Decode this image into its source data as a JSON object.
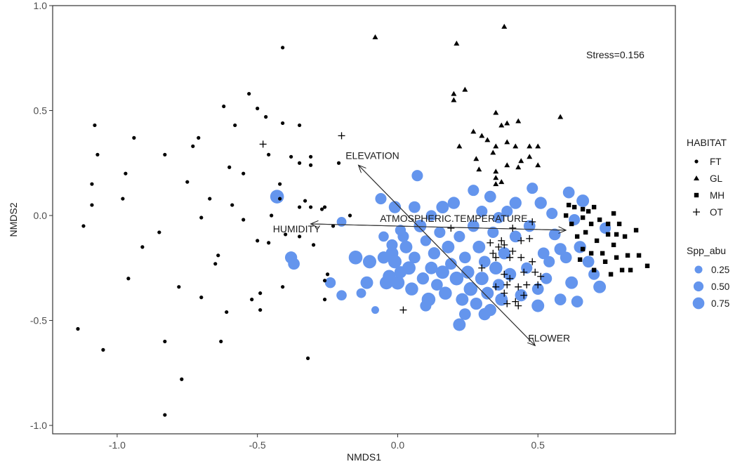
{
  "chart_data": {
    "type": "scatter",
    "xlabel": "NMDS1",
    "ylabel": "NMDS2",
    "xlim": [
      -1.23,
      0.99
    ],
    "ylim": [
      -1.04,
      1.0
    ],
    "x_ticks": [
      -1.0,
      -0.5,
      0.0,
      0.5
    ],
    "x_tick_labels": [
      "-1.0",
      "-0.5",
      "0.0",
      "0.5"
    ],
    "y_ticks": [
      -1.0,
      -0.5,
      0.0,
      0.5,
      1.0
    ],
    "y_tick_labels": [
      "-1.0",
      "-0.5",
      "0.0",
      "0.5",
      "1.0"
    ],
    "grid": false,
    "annotation": "Stress=0.156",
    "habitat_legend": {
      "title": "HABITAT",
      "position": "right",
      "items": [
        {
          "label": "FT",
          "shape": "circle"
        },
        {
          "label": "GL",
          "shape": "triangle"
        },
        {
          "label": "MH",
          "shape": "square"
        },
        {
          "label": "OT",
          "shape": "plus"
        }
      ]
    },
    "abundance_legend": {
      "title": "Spp_abu",
      "position": "right",
      "color": "#6495ED",
      "items": [
        {
          "label": "0.25",
          "value": 0.25
        },
        {
          "label": "0.50",
          "value": 0.5
        },
        {
          "label": "0.75",
          "value": 0.75
        }
      ]
    },
    "vectors": [
      {
        "label": "ELEVATION",
        "from": [
          0.49,
          -0.62
        ],
        "to": [
          -0.14,
          0.24
        ],
        "label_at": [
          -0.09,
          0.27
        ]
      },
      {
        "label": "FLOWER",
        "from": [
          -0.14,
          0.24
        ],
        "to": [
          0.49,
          -0.62
        ],
        "label_at": [
          0.54,
          -0.6
        ]
      },
      {
        "label": "HUMIDITY",
        "from": [
          0.6,
          -0.07
        ],
        "to": [
          -0.31,
          -0.04
        ],
        "label_at": [
          -0.36,
          -0.08
        ]
      },
      {
        "label": "ATMOSPHERIC.TEMPERATURE",
        "from": [
          -0.31,
          -0.04
        ],
        "to": [
          0.6,
          -0.07
        ],
        "label_at": [
          0.2,
          -0.03
        ]
      }
    ],
    "habitats": [
      {
        "name": "FT",
        "shape": "circle",
        "points": [
          [
            -1.08,
            0.43
          ],
          [
            -1.07,
            0.29
          ],
          [
            -1.09,
            0.15
          ],
          [
            -1.09,
            0.05
          ],
          [
            -1.12,
            -0.05
          ],
          [
            -1.14,
            -0.54
          ],
          [
            -1.05,
            -0.64
          ],
          [
            -0.97,
            0.2
          ],
          [
            -0.98,
            0.08
          ],
          [
            -0.96,
            -0.3
          ],
          [
            -0.94,
            0.37
          ],
          [
            -0.91,
            -0.15
          ],
          [
            -0.85,
            -0.08
          ],
          [
            -0.83,
            0.29
          ],
          [
            -0.83,
            -0.6
          ],
          [
            -0.83,
            -0.95
          ],
          [
            -0.78,
            -0.34
          ],
          [
            -0.77,
            -0.78
          ],
          [
            -0.75,
            0.16
          ],
          [
            -0.73,
            0.33
          ],
          [
            -0.71,
            0.37
          ],
          [
            -0.7,
            -0.01
          ],
          [
            -0.7,
            -0.39
          ],
          [
            -0.67,
            0.08
          ],
          [
            -0.65,
            -0.23
          ],
          [
            -0.64,
            -0.19
          ],
          [
            -0.63,
            -0.6
          ],
          [
            -0.62,
            0.52
          ],
          [
            -0.61,
            -0.46
          ],
          [
            -0.6,
            0.23
          ],
          [
            -0.59,
            0.05
          ],
          [
            -0.58,
            0.43
          ],
          [
            -0.55,
            0.2
          ],
          [
            -0.55,
            -0.02
          ],
          [
            -0.53,
            0.58
          ],
          [
            -0.52,
            -0.4
          ],
          [
            -0.5,
            0.51
          ],
          [
            -0.5,
            -0.12
          ],
          [
            -0.49,
            -0.37
          ],
          [
            -0.49,
            -0.45
          ],
          [
            -0.47,
            0.47
          ],
          [
            -0.46,
            0.29
          ],
          [
            -0.46,
            -0.13
          ],
          [
            -0.45,
            0.0
          ],
          [
            -0.42,
            0.15
          ],
          [
            -0.42,
            0.08
          ],
          [
            -0.41,
            0.44
          ],
          [
            -0.41,
            0.8
          ],
          [
            -0.41,
            -0.34
          ],
          [
            -0.4,
            -0.09
          ],
          [
            -0.38,
            0.28
          ],
          [
            -0.35,
            0.43
          ],
          [
            -0.35,
            0.04
          ],
          [
            -0.35,
            -0.1
          ],
          [
            -0.35,
            0.25
          ],
          [
            -0.33,
            0.07
          ],
          [
            -0.32,
            -0.68
          ],
          [
            -0.31,
            0.28
          ],
          [
            -0.31,
            0.24
          ],
          [
            -0.31,
            0.04
          ],
          [
            -0.3,
            -0.14
          ],
          [
            -0.27,
            0.03
          ],
          [
            -0.26,
            0.04
          ],
          [
            -0.26,
            -0.31
          ],
          [
            -0.26,
            -0.4
          ],
          [
            -0.25,
            -0.28
          ],
          [
            -0.23,
            -0.05
          ],
          [
            -0.21,
            0.25
          ],
          [
            -0.17,
            0.0
          ]
        ]
      },
      {
        "name": "GL",
        "shape": "triangle",
        "points": [
          [
            -0.08,
            0.85
          ],
          [
            0.2,
            0.58
          ],
          [
            0.2,
            0.55
          ],
          [
            0.21,
            0.82
          ],
          [
            0.22,
            0.33
          ],
          [
            0.24,
            0.6
          ],
          [
            0.27,
            0.4
          ],
          [
            0.28,
            0.27
          ],
          [
            0.29,
            0.22
          ],
          [
            0.3,
            0.38
          ],
          [
            0.32,
            0.36
          ],
          [
            0.34,
            0.3
          ],
          [
            0.35,
            0.33
          ],
          [
            0.35,
            0.49
          ],
          [
            0.35,
            0.21
          ],
          [
            0.35,
            0.18
          ],
          [
            0.37,
            0.43
          ],
          [
            0.38,
            0.9
          ],
          [
            0.39,
            0.44
          ],
          [
            0.39,
            0.24
          ],
          [
            0.39,
            0.35
          ],
          [
            0.42,
            0.33
          ],
          [
            0.43,
            0.45
          ],
          [
            0.43,
            0.23
          ],
          [
            0.44,
            0.26
          ],
          [
            0.47,
            0.33
          ],
          [
            0.47,
            0.28
          ],
          [
            0.5,
            0.33
          ],
          [
            0.5,
            0.24
          ],
          [
            0.58,
            0.47
          ],
          [
            0.35,
            0.15
          ],
          [
            0.37,
            0.16
          ]
        ]
      },
      {
        "name": "MH",
        "shape": "square",
        "points": [
          [
            0.6,
            0.0
          ],
          [
            0.61,
            0.05
          ],
          [
            0.62,
            -0.04
          ],
          [
            0.63,
            0.04
          ],
          [
            0.64,
            -0.1
          ],
          [
            0.65,
            -0.21
          ],
          [
            0.66,
            -0.01
          ],
          [
            0.66,
            -0.16
          ],
          [
            0.67,
            -0.08
          ],
          [
            0.68,
            0.02
          ],
          [
            0.69,
            -0.04
          ],
          [
            0.69,
            -0.18
          ],
          [
            0.7,
            0.04
          ],
          [
            0.7,
            -0.26
          ],
          [
            0.71,
            -0.12
          ],
          [
            0.72,
            -0.02
          ],
          [
            0.73,
            -0.18
          ],
          [
            0.74,
            -0.22
          ],
          [
            0.75,
            -0.09
          ],
          [
            0.76,
            -0.28
          ],
          [
            0.77,
            0.01
          ],
          [
            0.77,
            -0.14
          ],
          [
            0.78,
            -0.2
          ],
          [
            0.79,
            -0.04
          ],
          [
            0.8,
            -0.26
          ],
          [
            0.81,
            -0.1
          ],
          [
            0.82,
            -0.19
          ],
          [
            0.83,
            -0.26
          ],
          [
            0.85,
            -0.07
          ],
          [
            0.86,
            -0.19
          ],
          [
            0.89,
            -0.24
          ],
          [
            0.78,
            -0.09
          ],
          [
            0.75,
            -0.04
          ],
          [
            0.66,
            0.03
          ]
        ]
      },
      {
        "name": "OT",
        "shape": "plus",
        "points": [
          [
            -0.48,
            0.34
          ],
          [
            -0.2,
            0.38
          ],
          [
            0.02,
            -0.45
          ],
          [
            0.19,
            -0.06
          ],
          [
            0.3,
            -0.25
          ],
          [
            0.33,
            -0.13
          ],
          [
            0.34,
            -0.18
          ],
          [
            0.35,
            -0.2
          ],
          [
            0.35,
            -0.34
          ],
          [
            0.36,
            -0.15
          ],
          [
            0.37,
            -0.12
          ],
          [
            0.38,
            -0.14
          ],
          [
            0.38,
            -0.28
          ],
          [
            0.38,
            -0.37
          ],
          [
            0.39,
            -0.33
          ],
          [
            0.39,
            -0.42
          ],
          [
            0.4,
            -0.2
          ],
          [
            0.4,
            -0.3
          ],
          [
            0.41,
            -0.06
          ],
          [
            0.41,
            -0.17
          ],
          [
            0.42,
            -0.41
          ],
          [
            0.43,
            -0.34
          ],
          [
            0.43,
            -0.43
          ],
          [
            0.44,
            -0.12
          ],
          [
            0.44,
            -0.2
          ],
          [
            0.45,
            -0.27
          ],
          [
            0.45,
            -0.38
          ],
          [
            0.46,
            -0.33
          ],
          [
            0.47,
            -0.11
          ],
          [
            0.48,
            -0.22
          ],
          [
            0.49,
            -0.27
          ],
          [
            0.5,
            -0.33
          ],
          [
            0.51,
            -0.29
          ],
          [
            0.48,
            -0.03
          ]
        ]
      }
    ],
    "abundance_points": [
      [
        -0.43,
        0.09,
        0.75
      ],
      [
        -0.38,
        -0.2,
        0.55
      ],
      [
        -0.37,
        -0.23,
        0.5
      ],
      [
        -0.2,
        -0.03,
        0.3
      ],
      [
        -0.15,
        -0.2,
        0.75
      ],
      [
        -0.13,
        -0.37,
        0.3
      ],
      [
        -0.11,
        -0.32,
        0.6
      ],
      [
        -0.1,
        -0.22,
        0.7
      ],
      [
        -0.08,
        -0.45,
        0.15
      ],
      [
        -0.06,
        0.08,
        0.45
      ],
      [
        -0.05,
        -0.2,
        0.55
      ],
      [
        -0.05,
        -0.1,
        0.35
      ],
      [
        -0.04,
        -0.32,
        0.7
      ],
      [
        -0.03,
        -0.29,
        0.65
      ],
      [
        -0.02,
        -0.18,
        0.6
      ],
      [
        -0.02,
        -0.14,
        0.45
      ],
      [
        -0.01,
        0.04,
        0.55
      ],
      [
        -0.01,
        -0.22,
        0.7
      ],
      [
        0.0,
        -0.32,
        0.75
      ],
      [
        0.01,
        -0.27,
        0.55
      ],
      [
        0.02,
        -0.1,
        0.45
      ],
      [
        0.03,
        -0.15,
        0.6
      ],
      [
        0.04,
        -0.25,
        0.7
      ],
      [
        0.05,
        -0.35,
        0.65
      ],
      [
        0.06,
        -0.2,
        0.5
      ],
      [
        0.07,
        0.19,
        0.45
      ],
      [
        0.08,
        -0.05,
        0.6
      ],
      [
        0.09,
        -0.3,
        0.55
      ],
      [
        0.1,
        -0.12,
        0.4
      ],
      [
        0.11,
        -0.4,
        0.75
      ],
      [
        0.12,
        -0.25,
        0.6
      ],
      [
        0.13,
        -0.18,
        0.55
      ],
      [
        0.14,
        -0.33,
        0.5
      ],
      [
        0.15,
        -0.08,
        0.45
      ],
      [
        0.16,
        -0.27,
        0.7
      ],
      [
        0.17,
        -0.37,
        0.65
      ],
      [
        0.18,
        -0.15,
        0.6
      ],
      [
        0.19,
        -0.23,
        0.5
      ],
      [
        0.2,
        0.06,
        0.55
      ],
      [
        0.21,
        -0.3,
        0.75
      ],
      [
        0.22,
        -0.1,
        0.45
      ],
      [
        0.23,
        -0.4,
        0.6
      ],
      [
        0.24,
        -0.2,
        0.5
      ],
      [
        0.25,
        -0.27,
        0.65
      ],
      [
        0.26,
        -0.35,
        0.75
      ],
      [
        0.27,
        -0.05,
        0.5
      ],
      [
        0.28,
        -0.42,
        0.55
      ],
      [
        0.29,
        -0.15,
        0.6
      ],
      [
        0.3,
        -0.3,
        0.7
      ],
      [
        0.3,
        0.02,
        0.45
      ],
      [
        0.31,
        -0.22,
        0.5
      ],
      [
        0.32,
        -0.37,
        0.6
      ],
      [
        0.33,
        -0.45,
        0.55
      ],
      [
        0.34,
        -0.08,
        0.45
      ],
      [
        0.35,
        -0.25,
        0.65
      ],
      [
        0.36,
        -0.33,
        0.5
      ],
      [
        0.37,
        -0.4,
        0.6
      ],
      [
        0.38,
        -0.18,
        0.55
      ],
      [
        0.39,
        0.02,
        0.45
      ],
      [
        0.4,
        -0.28,
        0.6
      ],
      [
        0.42,
        -0.1,
        0.5
      ],
      [
        0.44,
        -0.38,
        0.55
      ],
      [
        0.46,
        -0.25,
        0.45
      ],
      [
        0.48,
        0.13,
        0.45
      ],
      [
        0.5,
        -0.35,
        0.5
      ],
      [
        0.51,
        0.06,
        0.55
      ],
      [
        0.52,
        -0.18,
        0.5
      ],
      [
        0.53,
        -0.3,
        0.45
      ],
      [
        0.55,
        0.01,
        0.45
      ],
      [
        0.56,
        -0.09,
        0.5
      ],
      [
        0.58,
        -0.16,
        0.55
      ],
      [
        0.6,
        -0.2,
        0.5
      ],
      [
        0.61,
        0.11,
        0.5
      ],
      [
        0.62,
        -0.32,
        0.6
      ],
      [
        0.63,
        -0.02,
        0.45
      ],
      [
        0.64,
        -0.41,
        0.5
      ],
      [
        0.65,
        -0.15,
        0.55
      ],
      [
        0.66,
        0.07,
        0.6
      ],
      [
        0.68,
        -0.22,
        0.5
      ],
      [
        0.7,
        -0.28,
        0.45
      ],
      [
        0.72,
        -0.34,
        0.6
      ],
      [
        0.74,
        -0.06,
        0.45
      ],
      [
        0.06,
        0.04,
        0.5
      ],
      [
        0.16,
        0.04,
        0.6
      ],
      [
        0.27,
        0.12,
        0.45
      ],
      [
        0.33,
        0.09,
        0.5
      ],
      [
        0.42,
        0.06,
        0.55
      ],
      [
        0.47,
        -0.05,
        0.5
      ],
      [
        0.1,
        -0.43,
        0.45
      ],
      [
        0.24,
        -0.47,
        0.5
      ],
      [
        0.31,
        -0.47,
        0.55
      ],
      [
        0.5,
        -0.43,
        0.6
      ],
      [
        0.58,
        -0.4,
        0.5
      ],
      [
        0.22,
        -0.52,
        0.6
      ],
      [
        -0.2,
        -0.38,
        0.35
      ],
      [
        -0.24,
        -0.32,
        0.4
      ],
      [
        0.01,
        -0.07,
        0.4
      ],
      [
        0.12,
        0.0,
        0.4
      ],
      [
        0.36,
        -0.01,
        0.45
      ],
      [
        0.54,
        -0.22,
        0.45
      ]
    ]
  }
}
